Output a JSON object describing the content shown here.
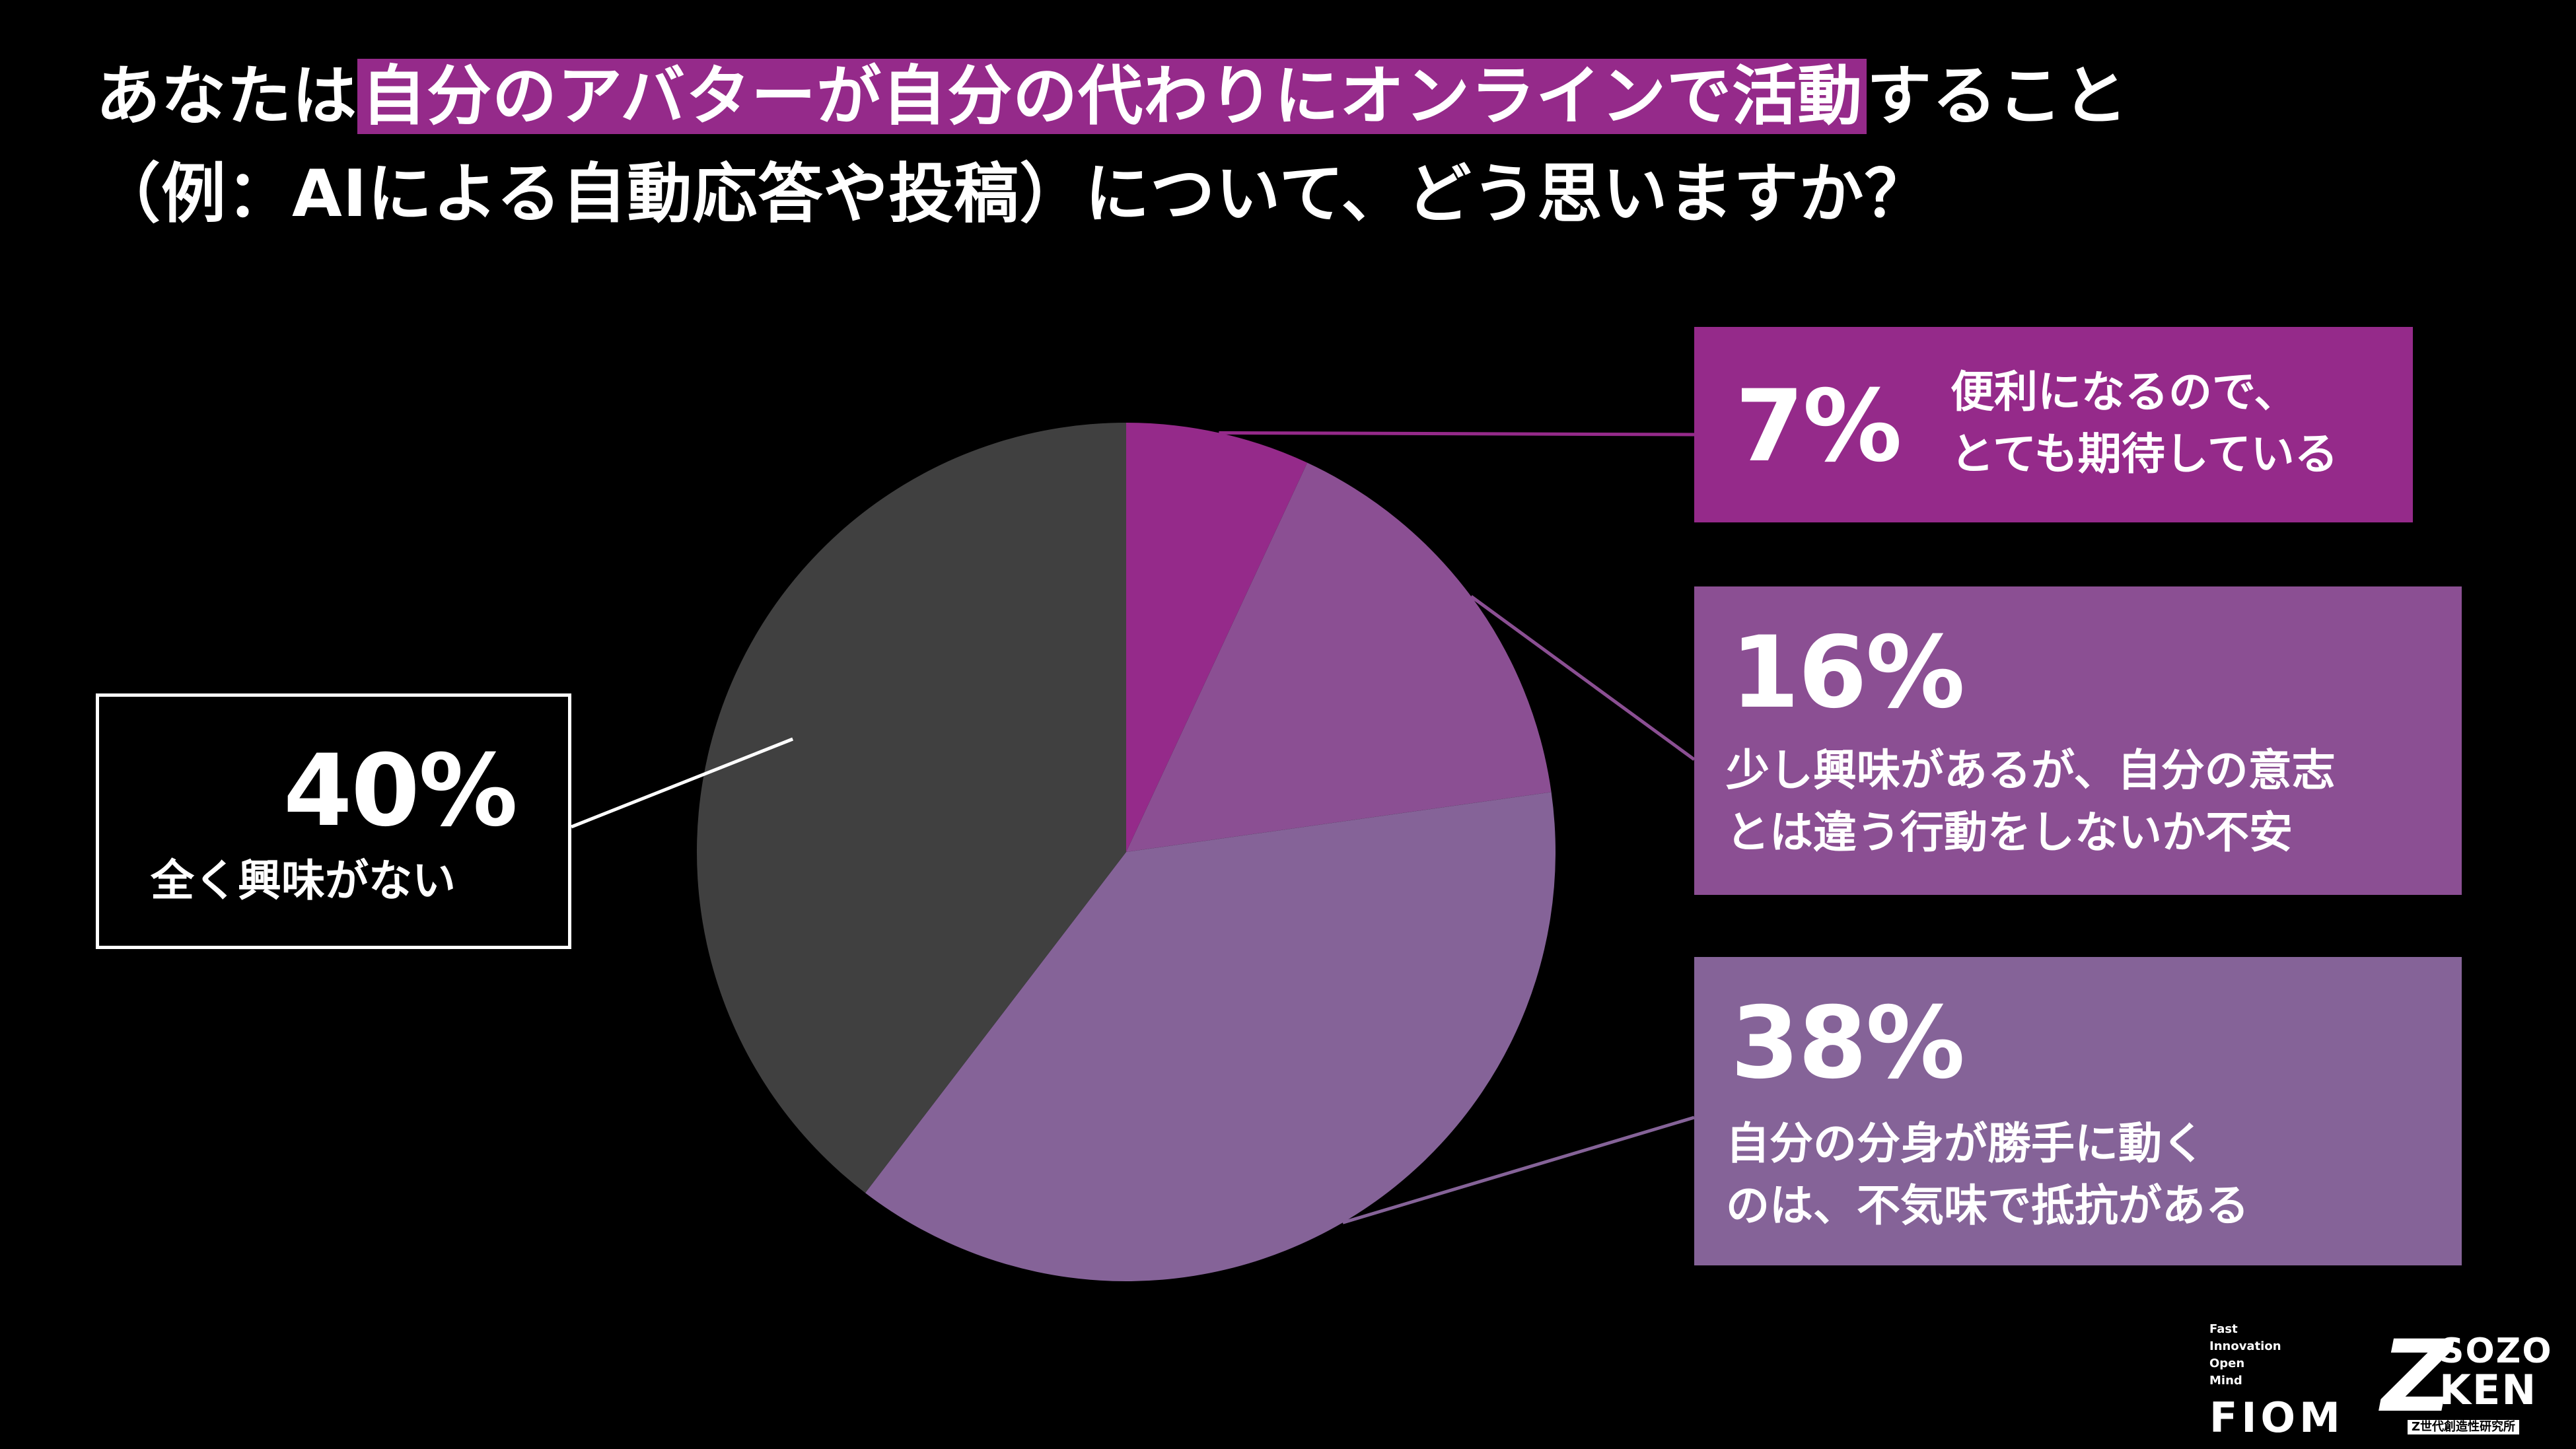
{
  "title": {
    "part1": "あなたは",
    "highlight": "自分のアバターが自分の代わりにオンラインで活動",
    "part2": "すること",
    "line2": "（例：AIによる自動応答や投稿）について、どう思いますか？"
  },
  "chart_data": {
    "type": "pie",
    "title": "あなたは自分のアバターが自分の代わりにオンラインで活動すること（例：AIによる自動応答や投稿）について、どう思いますか？",
    "start": "12 o'clock, clockwise",
    "slices": [
      {
        "value": 7,
        "label": "7%",
        "name": "便利になるので、\nとても期待している",
        "color": "#952a8a"
      },
      {
        "value": 16,
        "label": "16%",
        "name": "少し興味があるが、自分の意志\nとは違う行動をしないか不安",
        "color": "#8b4f93"
      },
      {
        "value": 38,
        "label": "38%",
        "name": "自分の分身が勝手に動く\nのは、不気味で抵抗がある",
        "color": "#856398"
      },
      {
        "value": 40,
        "label": "40%",
        "name": "全く興味がない",
        "color": "#404040"
      }
    ]
  },
  "logos": {
    "fiom_small": "Fast\nInnovation\nOpen\nMind",
    "fiom": "FIOM",
    "sozo_z": "Z",
    "sozo_1": "SOZO",
    "sozo_2": "KEN",
    "sozo_sub": "Z世代創造性研究所"
  }
}
